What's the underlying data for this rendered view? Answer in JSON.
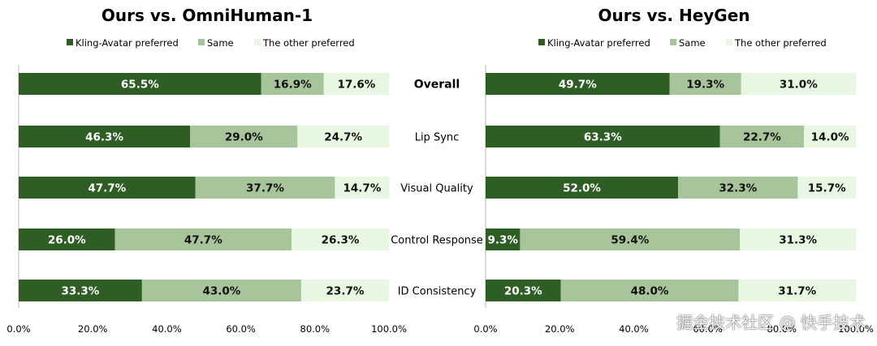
{
  "colors": {
    "kling": "#2e5e24",
    "same": "#a7c49a",
    "other": "#e8f7e1",
    "axis": "#bbbbbb"
  },
  "categories": [
    "Overall",
    "Lip Sync",
    "Visual Quality",
    "Control Response",
    "ID Consistency"
  ],
  "watermark": "掘金技术社区 @ 快手技术",
  "chart_data": [
    {
      "type": "bar",
      "orientation": "horizontal",
      "stacked": true,
      "title": "Ours vs. OmniHuman-1",
      "categories": [
        "Overall",
        "Lip Sync",
        "Visual Quality",
        "Control Response",
        "ID Consistency"
      ],
      "series": [
        {
          "name": "Kling-Avatar preferred",
          "color": "#2e5e24",
          "values": [
            65.5,
            46.3,
            47.7,
            26.0,
            33.3
          ],
          "labels": [
            "65.5%",
            "46.3%",
            "47.7%",
            "26.0%",
            "33.3%"
          ]
        },
        {
          "name": "Same",
          "color": "#a7c49a",
          "values": [
            16.9,
            29.0,
            37.7,
            47.7,
            43.0
          ],
          "labels": [
            "16.9%",
            "29.0%",
            "37.7%",
            "47.7%",
            "43.0%"
          ]
        },
        {
          "name": "The other preferred",
          "color": "#e8f7e1",
          "values": [
            17.6,
            24.7,
            14.7,
            26.3,
            23.7
          ],
          "labels": [
            "17.6%",
            "24.7%",
            "14.7%",
            "26.3%",
            "23.7%"
          ]
        }
      ],
      "xlim": [
        0,
        100
      ],
      "xticks": [
        "0.0%",
        "20.0%",
        "40.0%",
        "60.0%",
        "80.0%",
        "100.0%"
      ],
      "legend": "top"
    },
    {
      "type": "bar",
      "orientation": "horizontal",
      "stacked": true,
      "title": "Ours vs. HeyGen",
      "categories": [
        "Overall",
        "Lip Sync",
        "Visual Quality",
        "Control Response",
        "ID Consistency"
      ],
      "series": [
        {
          "name": "Kling-Avatar preferred",
          "color": "#2e5e24",
          "values": [
            49.7,
            63.3,
            52.0,
            9.3,
            20.3
          ],
          "labels": [
            "49.7%",
            "63.3%",
            "52.0%",
            "9.3%",
            "20.3%"
          ]
        },
        {
          "name": "Same",
          "color": "#a7c49a",
          "values": [
            19.3,
            22.7,
            32.3,
            59.4,
            48.0
          ],
          "labels": [
            "19.3%",
            "22.7%",
            "32.3%",
            "59.4%",
            "48.0%"
          ]
        },
        {
          "name": "The other preferred",
          "color": "#e8f7e1",
          "values": [
            31.0,
            14.0,
            15.7,
            31.3,
            31.7
          ],
          "labels": [
            "31.0%",
            "14.0%",
            "15.7%",
            "31.3%",
            "31.7%"
          ]
        }
      ],
      "xlim": [
        0,
        100
      ],
      "xticks": [
        "0.0%",
        "20.0%",
        "40.0%",
        "60.0%",
        "80.0%",
        "100.0%"
      ],
      "legend": "top"
    }
  ]
}
